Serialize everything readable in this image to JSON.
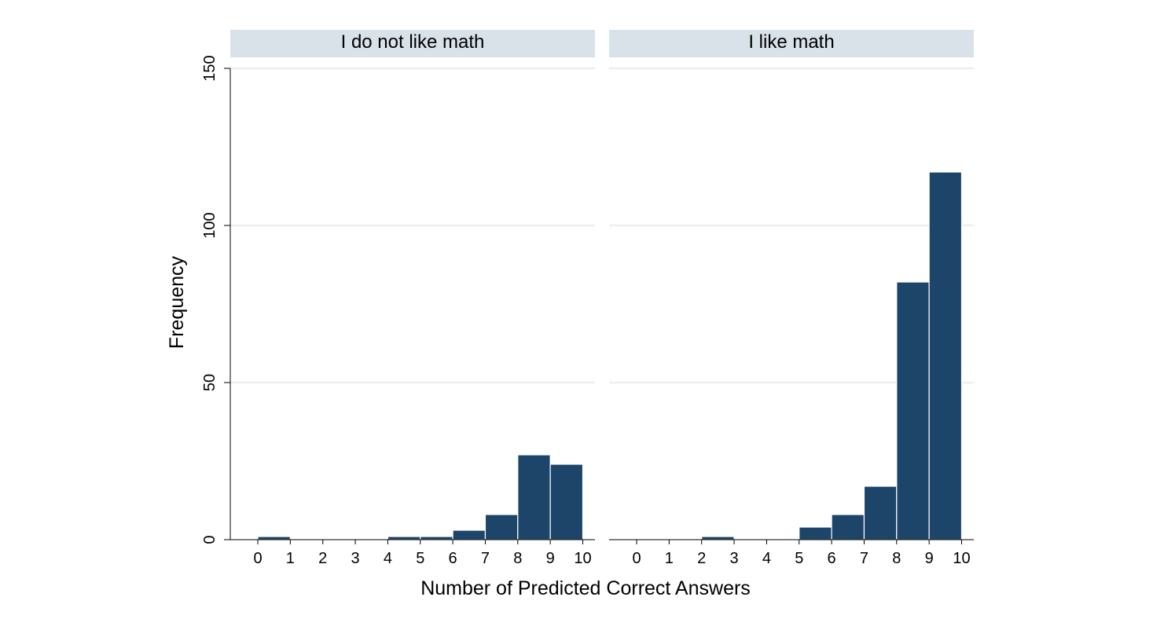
{
  "chart_data": {
    "type": "bar",
    "xlabel": "Number of Predicted Correct Answers",
    "ylabel": "Frequency",
    "ylim": [
      0,
      150
    ],
    "yticks": [
      0,
      50,
      100,
      150
    ],
    "xticks": [
      0,
      1,
      2,
      3,
      4,
      5,
      6,
      7,
      8,
      9,
      10
    ],
    "xlim": [
      -1,
      10
    ],
    "grid": true,
    "bar_color": "#1d4569",
    "strip_color": "#d9e2e9",
    "grid_color": "#eaf0f2",
    "bin_width": 1,
    "panels": [
      {
        "title": "I do not like math",
        "bins": [
          {
            "start": 0,
            "end": 1,
            "value": 1
          },
          {
            "start": 1,
            "end": 2,
            "value": 0
          },
          {
            "start": 2,
            "end": 3,
            "value": 0
          },
          {
            "start": 3,
            "end": 4,
            "value": 0
          },
          {
            "start": 4,
            "end": 5,
            "value": 1
          },
          {
            "start": 5,
            "end": 6,
            "value": 1
          },
          {
            "start": 6,
            "end": 7,
            "value": 3
          },
          {
            "start": 7,
            "end": 8,
            "value": 8
          },
          {
            "start": 8,
            "end": 9,
            "value": 27
          },
          {
            "start": 9,
            "end": 10,
            "value": 24
          }
        ]
      },
      {
        "title": "I like math",
        "bins": [
          {
            "start": 0,
            "end": 1,
            "value": 0
          },
          {
            "start": 1,
            "end": 2,
            "value": 0
          },
          {
            "start": 2,
            "end": 3,
            "value": 1
          },
          {
            "start": 3,
            "end": 4,
            "value": 0
          },
          {
            "start": 4,
            "end": 5,
            "value": 0
          },
          {
            "start": 5,
            "end": 6,
            "value": 4
          },
          {
            "start": 6,
            "end": 7,
            "value": 8
          },
          {
            "start": 7,
            "end": 8,
            "value": 17
          },
          {
            "start": 8,
            "end": 9,
            "value": 82
          },
          {
            "start": 9,
            "end": 10,
            "value": 117
          }
        ]
      }
    ]
  }
}
